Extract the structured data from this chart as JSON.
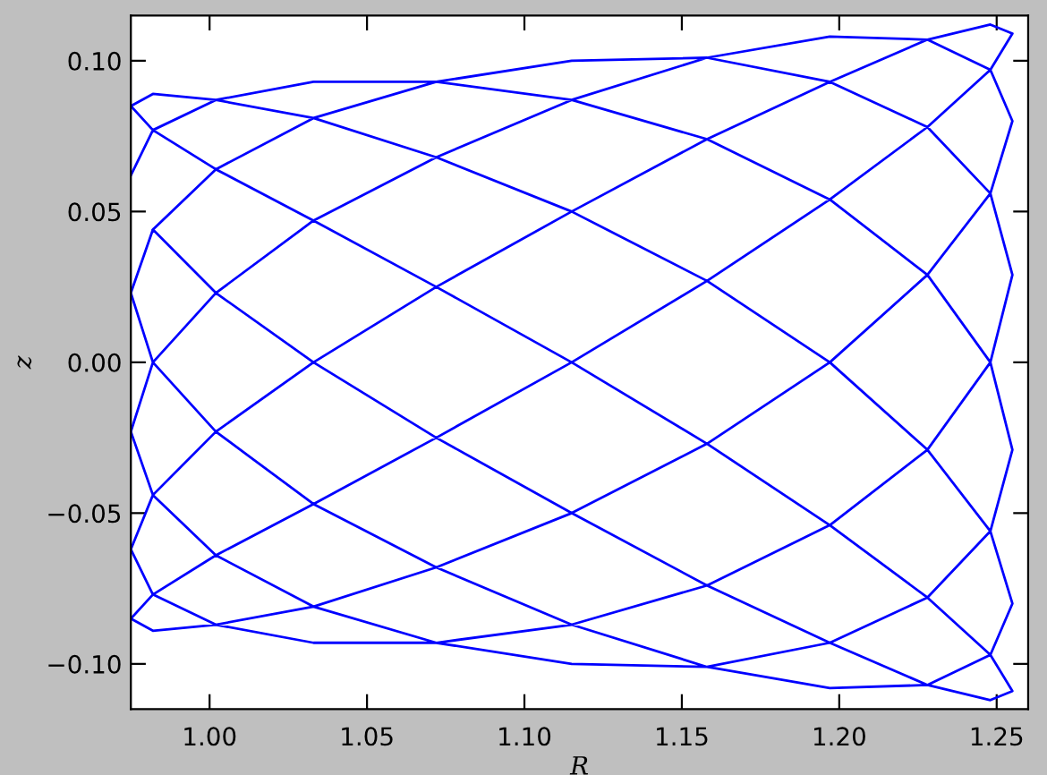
{
  "chart_data": {
    "type": "line",
    "xlabel": "R",
    "ylabel": "z",
    "xlim": [
      0.975,
      1.26
    ],
    "ylim": [
      -0.115,
      0.115
    ],
    "xticks": [
      {
        "value": 1.0,
        "label": "1.00"
      },
      {
        "value": 1.05,
        "label": "1.05"
      },
      {
        "value": 1.1,
        "label": "1.10"
      },
      {
        "value": 1.15,
        "label": "1.15"
      },
      {
        "value": 1.2,
        "label": "1.20"
      },
      {
        "value": 1.25,
        "label": "1.25"
      }
    ],
    "yticks": [
      {
        "value": -0.1,
        "label": "−0.10"
      },
      {
        "value": -0.05,
        "label": "−0.05"
      },
      {
        "value": 0.0,
        "label": "0.00"
      },
      {
        "value": 0.05,
        "label": "0.05"
      },
      {
        "value": 0.1,
        "label": "0.10"
      }
    ],
    "grid": false,
    "legend": false,
    "marker": "none",
    "line_style": "solid",
    "x": [
      0.975,
      0.982,
      1.002,
      1.033,
      1.072,
      1.115,
      1.158,
      1.197,
      1.228,
      1.248,
      1.255,
      1.248,
      1.228,
      1.197,
      1.158,
      1.115,
      1.072,
      1.033,
      1.002,
      0.982,
      0.975,
      0.982,
      1.002,
      1.033,
      1.072,
      1.115,
      1.158,
      1.197,
      1.228,
      1.248,
      1.255,
      1.248,
      1.228,
      1.197,
      1.158,
      1.115,
      1.072,
      1.033,
      1.002,
      0.982,
      0.975,
      0.982,
      1.002,
      1.033,
      1.072,
      1.115,
      1.158,
      1.197,
      1.228,
      1.248,
      1.255,
      1.248,
      1.228,
      1.197,
      1.158,
      1.115,
      1.072,
      1.033,
      1.002,
      0.982,
      0.975,
      0.982,
      1.002,
      1.033,
      1.072,
      1.115,
      1.158,
      1.197,
      1.228,
      1.248,
      1.255,
      1.248,
      1.228,
      1.197,
      1.158,
      1.115,
      1.072,
      1.033,
      1.002,
      0.982,
      0.975,
      0.982,
      1.002,
      1.033,
      1.072,
      1.115,
      1.158,
      1.197,
      1.228,
      1.248,
      1.255,
      1.248,
      1.228,
      1.197,
      1.158,
      1.115,
      1.072,
      1.033,
      1.002,
      0.982,
      0.975,
      0.982,
      1.002,
      1.033,
      1.072,
      1.115,
      1.158,
      1.197,
      1.228,
      1.248,
      1.255,
      1.248,
      1.228,
      1.197,
      1.158,
      1.115,
      1.072,
      1.033,
      1.002,
      0.982
    ],
    "series": [
      {
        "color": "#0000ff",
        "values": [
          0.062,
          0.077,
          0.087,
          0.093,
          0.093,
          0.087,
          0.074,
          0.054,
          0.029,
          0,
          -0.029,
          -0.056,
          -0.078,
          -0.093,
          -0.101,
          -0.1,
          -0.093,
          -0.081,
          -0.064,
          -0.044,
          -0.023,
          0,
          0.023,
          0.047,
          0.068,
          0.087,
          0.101,
          0.108,
          0.107,
          0.097,
          0.08,
          0.056,
          0.029,
          0,
          -0.027,
          -0.05,
          -0.068,
          -0.081,
          -0.087,
          -0.089,
          -0.085,
          -0.077,
          -0.064,
          -0.047,
          -0.025,
          0,
          0.027,
          0.054,
          0.078,
          0.097,
          0.109,
          0.112,
          0.107,
          0.093,
          0.074,
          0.05,
          0.025,
          0,
          -0.023,
          -0.044,
          -0.062,
          -0.077,
          -0.087,
          -0.093,
          -0.093,
          -0.087,
          -0.074,
          -0.054,
          -0.029,
          0,
          0.029,
          0.056,
          0.078,
          0.093,
          0.101,
          0.1,
          0.093,
          0.081,
          0.064,
          0.044,
          0.023,
          0,
          -0.023,
          -0.047,
          -0.068,
          -0.087,
          -0.101,
          -0.108,
          -0.107,
          -0.097,
          -0.08,
          -0.056,
          -0.029,
          0,
          0.027,
          0.05,
          0.068,
          0.081,
          0.087,
          0.089,
          0.085,
          0.077,
          0.064,
          0.047,
          0.025,
          0,
          -0.027,
          -0.054,
          -0.078,
          -0.097,
          -0.109,
          -0.112,
          -0.107,
          -0.093,
          -0.074,
          -0.05,
          -0.025,
          0,
          0.023,
          0.044
        ]
      }
    ]
  }
}
